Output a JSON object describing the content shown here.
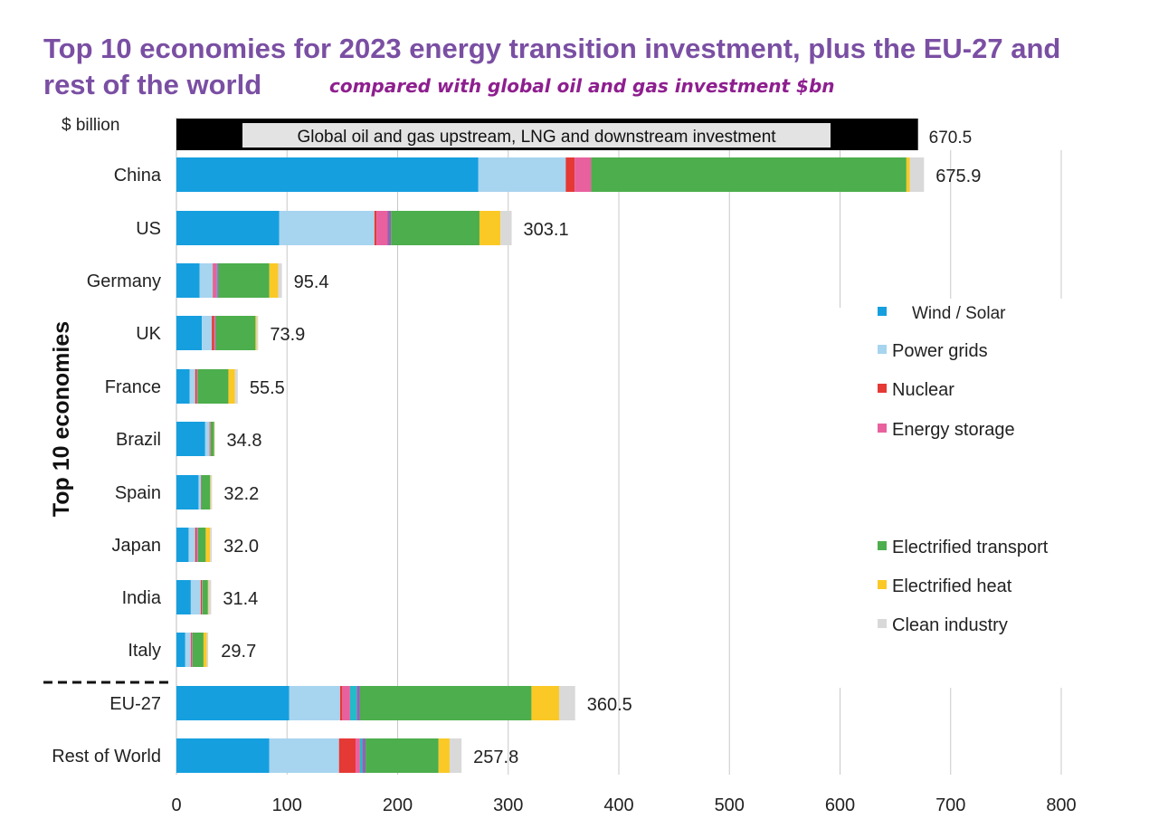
{
  "title_line1": "Top 10 economies for 2023 energy transition investment, plus the EU-27 and",
  "title_line2": "rest of the world",
  "subtitle": "compared with global oil and gas investment $bn",
  "colors": {
    "wind_solar": "#159fdf",
    "power_grids": "#a7d4ef",
    "nuclear": "#e53935",
    "energy_storage": "#e8619e",
    "hydrogen": "#22bcc9",
    "ccs": "#8e65b4",
    "electrified_transport": "#4cae4c",
    "electrified_heat": "#fbc926",
    "clean_industry": "#d9d9d9",
    "oil_gas_bar": "#000000",
    "oil_gas_label_bg": "#e3e3e3",
    "grid": "#c8c8c8",
    "text": "#222222"
  },
  "chart_data": {
    "type": "bar",
    "orientation": "horizontal",
    "stacked": true,
    "title": "Top 10 economies for 2023 energy transition investment, plus the EU-27 and rest of the world",
    "unit_label": "$ billion",
    "group_label": "Top 10 economies",
    "xlim": [
      0,
      800
    ],
    "xticks": [
      0,
      100,
      200,
      300,
      400,
      500,
      600,
      700,
      800
    ],
    "reference_bar": {
      "label": "Global oil and gas upstream, LNG and downstream investment",
      "value": 670.5,
      "value_label": "670.5"
    },
    "categories": [
      "China",
      "US",
      "Germany",
      "UK",
      "France",
      "Brazil",
      "Spain",
      "Japan",
      "India",
      "Italy",
      "EU-27",
      "Rest of World"
    ],
    "totals": [
      675.9,
      303.1,
      95.4,
      73.9,
      55.5,
      34.8,
      32.2,
      32.0,
      31.4,
      29.7,
      360.5,
      257.8
    ],
    "total_labels": [
      "675.9",
      "303.1",
      "95.4",
      "73.9",
      "55.5",
      "34.8",
      "32.2",
      "32.0",
      "31.4",
      "29.7",
      "360.5",
      "257.8"
    ],
    "series": [
      {
        "key": "wind_solar",
        "name": "Wind / Solar",
        "values": [
          273,
          93,
          21,
          23,
          12,
          26,
          20,
          11,
          13,
          8,
          102,
          84
        ]
      },
      {
        "key": "power_grids",
        "name": "Power grids",
        "values": [
          79,
          86,
          12,
          9,
          5,
          4,
          2,
          6,
          9,
          5,
          46,
          63
        ]
      },
      {
        "key": "nuclear",
        "name": "Nuclear",
        "values": [
          8,
          2,
          0.5,
          2,
          1,
          0.5,
          0,
          1,
          1,
          0.5,
          2,
          15
        ]
      },
      {
        "key": "energy_storage",
        "name": "Energy storage",
        "values": [
          15,
          10,
          3,
          1,
          1,
          0.5,
          0.5,
          1,
          0.5,
          1,
          7,
          4
        ]
      },
      {
        "key": "hydrogen",
        "name": "",
        "values": [
          0,
          0,
          0.5,
          0,
          0,
          0,
          0,
          0,
          0,
          0,
          6,
          2
        ]
      },
      {
        "key": "ccs",
        "name": "",
        "values": [
          0,
          3,
          1,
          0.5,
          0,
          0,
          0,
          0.5,
          0,
          0,
          3,
          3
        ]
      },
      {
        "key": "electrified_transport",
        "name": "Electrified transport",
        "values": [
          285,
          80,
          46,
          36,
          28,
          3,
          8,
          7,
          5,
          10,
          155,
          66
        ]
      },
      {
        "key": "electrified_heat",
        "name": "Electrified heat",
        "values": [
          3,
          19,
          8,
          1,
          6,
          0.3,
          0.5,
          4,
          0.5,
          3,
          25,
          10
        ]
      },
      {
        "key": "clean_industry",
        "name": "Clean industry",
        "values": [
          12.9,
          10.1,
          3.4,
          1.4,
          2.5,
          0.5,
          1.2,
          1.5,
          2.4,
          1.2,
          14.5,
          10.8
        ]
      }
    ],
    "legend": [
      {
        "key": "wind_solar",
        "label": "Wind / Solar"
      },
      {
        "key": "power_grids",
        "label": "Power grids"
      },
      {
        "key": "nuclear",
        "label": "Nuclear"
      },
      {
        "key": "energy_storage",
        "label": "Energy storage"
      },
      {
        "key": "electrified_transport",
        "label": "Electrified transport"
      },
      {
        "key": "electrified_heat",
        "label": "Electrified heat"
      },
      {
        "key": "clean_industry",
        "label": "Clean industry"
      }
    ]
  }
}
